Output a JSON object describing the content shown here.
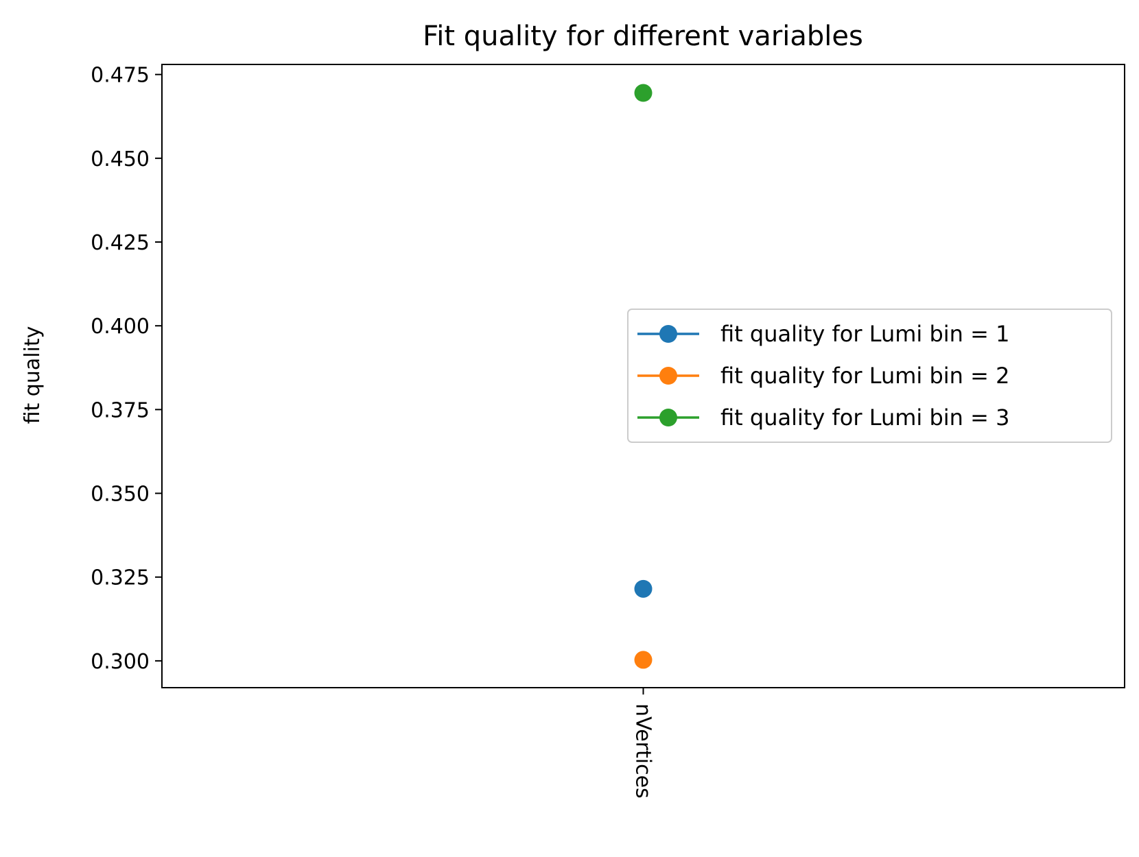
{
  "chart_data": {
    "type": "line",
    "title": "Fit quality for different variables",
    "xlabel": "",
    "ylabel": "fit quality",
    "categories": [
      "nVertices"
    ],
    "x_tick_rotation": "vertical",
    "ylim": [
      0.292,
      0.478
    ],
    "yticks": [
      "0.300",
      "0.325",
      "0.350",
      "0.375",
      "0.400",
      "0.425",
      "0.450",
      "0.475"
    ],
    "grid": false,
    "legend_placement": "center-right",
    "marker": "circle",
    "series": [
      {
        "name": "fit quality for Lumi bin = 1",
        "color": "#1f77b4",
        "values": [
          0.3215
        ]
      },
      {
        "name": "fit quality for Lumi bin = 2",
        "color": "#ff7f0e",
        "values": [
          0.3003
        ]
      },
      {
        "name": "fit quality for Lumi bin = 3",
        "color": "#2ca02c",
        "values": [
          0.4695
        ]
      }
    ]
  }
}
